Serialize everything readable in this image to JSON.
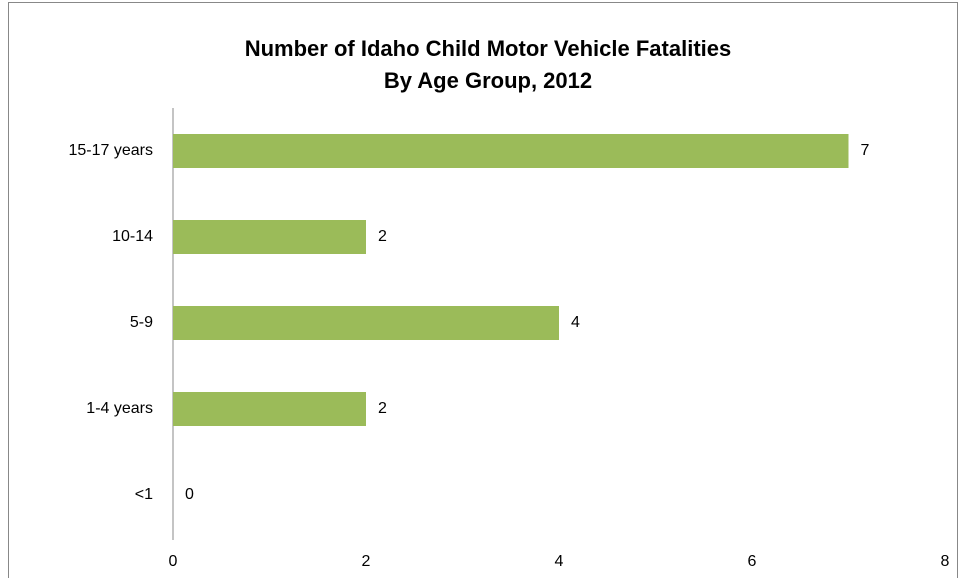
{
  "chart_data": {
    "type": "bar",
    "orientation": "horizontal",
    "title": [
      "Number of Idaho Child Motor Vehicle Fatalities",
      "By Age Group, 2012"
    ],
    "categories": [
      "<1",
      "1-4 years",
      "5-9",
      "10-14",
      "15-17 years"
    ],
    "values": [
      0,
      2,
      4,
      2,
      7
    ],
    "color": "#9bbb59",
    "xlim": [
      0,
      8
    ],
    "xticks": [
      0,
      2,
      4,
      6,
      8
    ],
    "grid": false
  }
}
